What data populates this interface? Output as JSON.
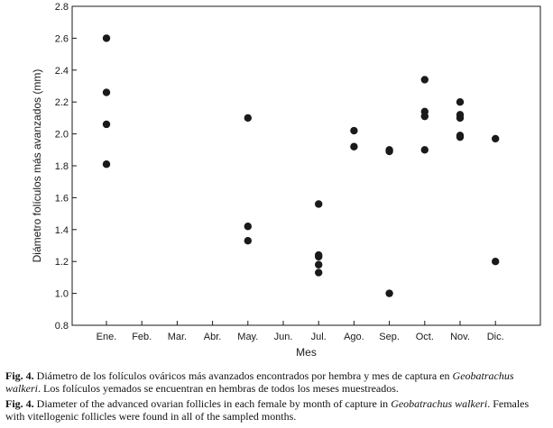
{
  "chart_data": {
    "type": "scatter",
    "xlabel": "Mes",
    "ylabel": "Diámetro folículos más avanzados (mm)",
    "ylim": [
      0.8,
      2.8
    ],
    "yticks": [
      "0.8",
      "1.0",
      "1.2",
      "1.4",
      "1.6",
      "1.8",
      "2.0",
      "2.2",
      "2.4",
      "2.6",
      "2.8"
    ],
    "categories": [
      "Ene.",
      "Feb.",
      "Mar.",
      "Abr.",
      "May.",
      "Jun.",
      "Jul.",
      "Ago.",
      "Sep.",
      "Oct.",
      "Nov.",
      "Dic."
    ],
    "grid": false,
    "point_color": "#1a1a1a",
    "points": [
      {
        "x": "Ene.",
        "y": 2.6
      },
      {
        "x": "Ene.",
        "y": 2.26
      },
      {
        "x": "Ene.",
        "y": 2.06
      },
      {
        "x": "Ene.",
        "y": 1.81
      },
      {
        "x": "May.",
        "y": 2.1
      },
      {
        "x": "May.",
        "y": 1.42
      },
      {
        "x": "May.",
        "y": 1.33
      },
      {
        "x": "Jul.",
        "y": 1.56
      },
      {
        "x": "Jul.",
        "y": 1.24
      },
      {
        "x": "Jul.",
        "y": 1.23
      },
      {
        "x": "Jul.",
        "y": 1.18
      },
      {
        "x": "Jul.",
        "y": 1.13
      },
      {
        "x": "Ago.",
        "y": 2.02
      },
      {
        "x": "Ago.",
        "y": 1.92
      },
      {
        "x": "Sep.",
        "y": 1.9
      },
      {
        "x": "Sep.",
        "y": 1.89
      },
      {
        "x": "Sep.",
        "y": 1.0
      },
      {
        "x": "Oct.",
        "y": 2.34
      },
      {
        "x": "Oct.",
        "y": 2.14
      },
      {
        "x": "Oct.",
        "y": 2.11
      },
      {
        "x": "Oct.",
        "y": 1.9
      },
      {
        "x": "Nov.",
        "y": 2.2
      },
      {
        "x": "Nov.",
        "y": 2.12
      },
      {
        "x": "Nov.",
        "y": 2.1
      },
      {
        "x": "Nov.",
        "y": 1.99
      },
      {
        "x": "Nov.",
        "y": 1.98
      },
      {
        "x": "Dic.",
        "y": 1.97
      },
      {
        "x": "Dic.",
        "y": 1.2
      }
    ]
  },
  "caption": {
    "es_label": "Fig. 4.",
    "es_text": " Diámetro de los folículos ováricos más avanzados encontrados por hembra y mes de captura en ",
    "es_species": "Geobatrachus walkeri",
    "es_text2": ". Los folículos yemados se encuentran en hembras de todos los meses muestreados.",
    "en_label": "Fig. 4.",
    "en_text": " Diameter of the advanced ovarian follicles in each female by month of capture in ",
    "en_species": "Geobatrachus walkeri",
    "en_text2": ". Females with vitellogenic follicles were found in all of the sampled months."
  }
}
